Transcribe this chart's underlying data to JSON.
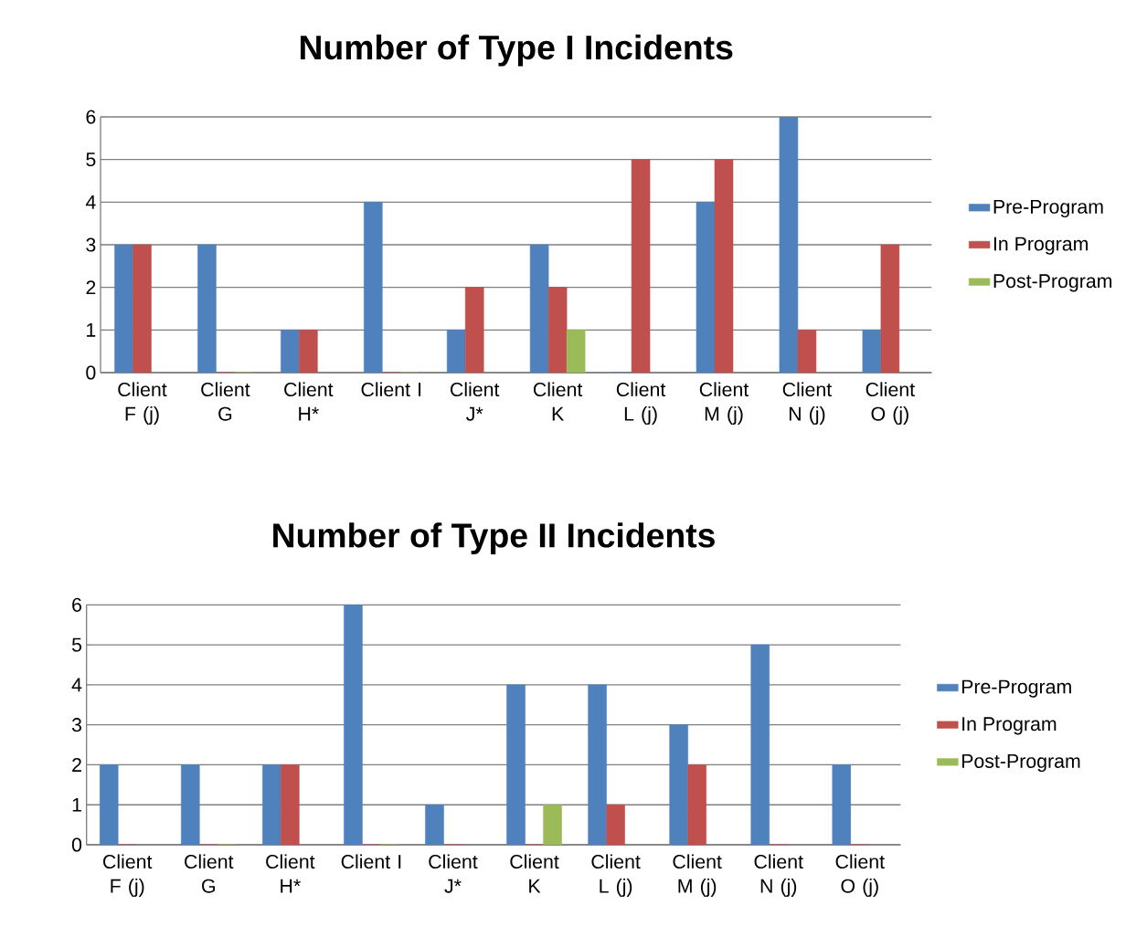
{
  "chart_data": [
    {
      "type": "bar",
      "title": "Number of Type I Incidents",
      "categories": [
        "Client F (j)",
        "Client G",
        "Client H*",
        "Client I",
        "Client J*",
        "Client K",
        "Client L (j)",
        "Client M (j)",
        "Client N (j)",
        "Client O (j)"
      ],
      "series": [
        {
          "name": "Pre-Program",
          "color": "#4f81bd",
          "values": [
            3,
            3,
            1,
            4,
            1,
            3,
            0,
            4,
            6,
            1
          ]
        },
        {
          "name": "In Program",
          "color": "#c0504d",
          "values": [
            3,
            0,
            1,
            0,
            2,
            2,
            5,
            5,
            1,
            3
          ]
        },
        {
          "name": "Post-Program",
          "color": "#9bbb59",
          "values": [
            null,
            0,
            null,
            0,
            null,
            1,
            null,
            null,
            null,
            null
          ]
        }
      ],
      "ylim": [
        0,
        6
      ],
      "yticks": [
        0,
        1,
        2,
        3,
        4,
        5,
        6
      ],
      "grid": "y",
      "legend": "right"
    },
    {
      "type": "bar",
      "title": "Number of Type II Incidents",
      "categories": [
        "Client F (j)",
        "Client G",
        "Client H*",
        "Client I",
        "Client J*",
        "Client K",
        "Client L (j)",
        "Client M (j)",
        "Client N (j)",
        "Client O (j)"
      ],
      "series": [
        {
          "name": "Pre-Program",
          "color": "#4f81bd",
          "values": [
            2,
            2,
            2,
            6,
            1,
            4,
            4,
            3,
            5,
            2
          ]
        },
        {
          "name": "In Program",
          "color": "#c0504d",
          "values": [
            0,
            0,
            2,
            0,
            0,
            0,
            1,
            2,
            0,
            0
          ]
        },
        {
          "name": "Post-Program",
          "color": "#9bbb59",
          "values": [
            null,
            0,
            null,
            0,
            null,
            1,
            null,
            null,
            null,
            null
          ]
        }
      ],
      "ylim": [
        0,
        6
      ],
      "yticks": [
        0,
        1,
        2,
        3,
        4,
        5,
        6
      ],
      "grid": "y",
      "legend": "right"
    }
  ]
}
